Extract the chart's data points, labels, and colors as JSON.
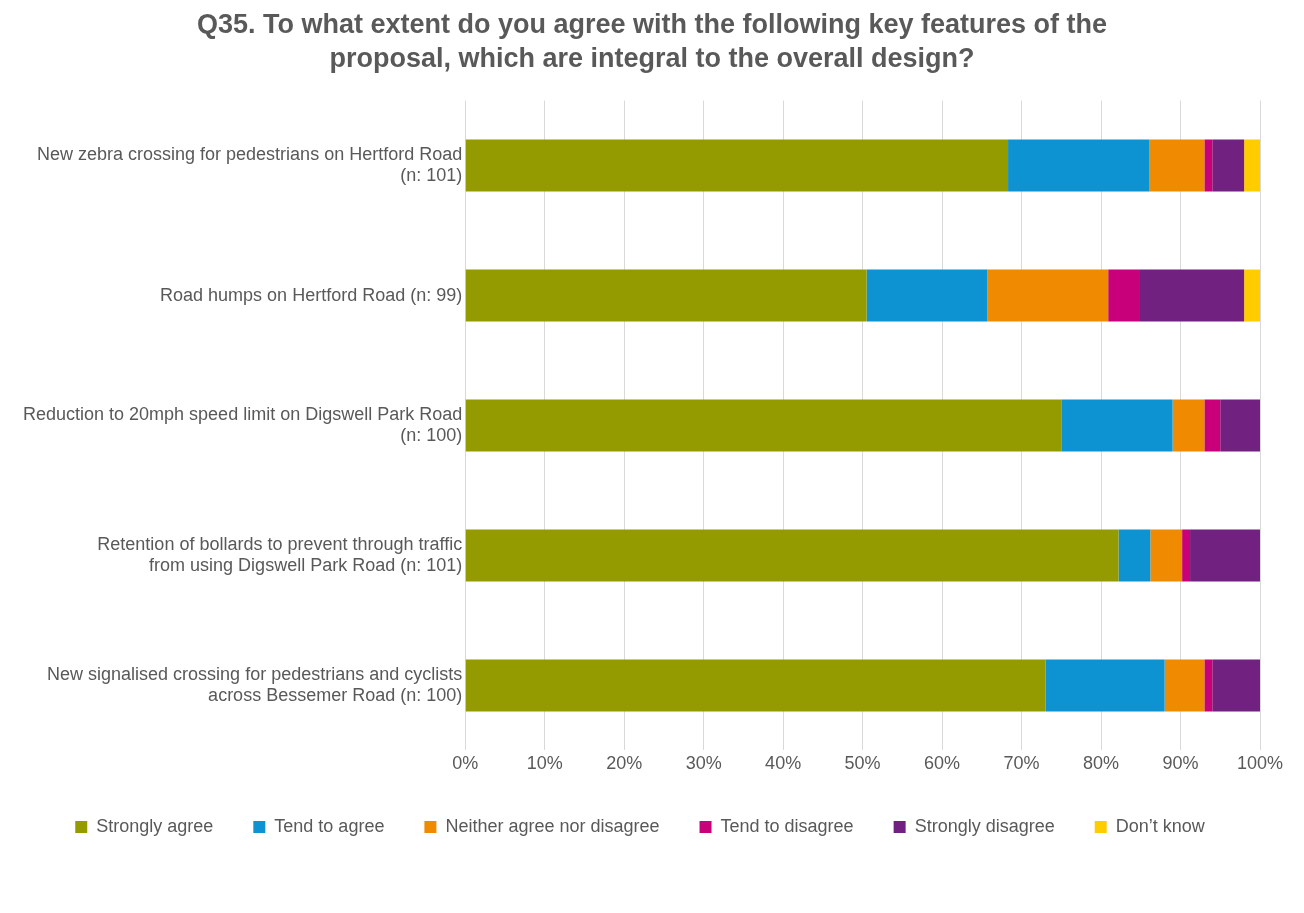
{
  "chart_data": {
    "type": "bar",
    "orientation": "horizontal",
    "stacked": true,
    "title": "Q35. To what extent do you agree with the following key features of the proposal, which are integral to the overall design?",
    "categories": [
      "New zebra crossing for pedestrians on Hertford Road (n: 101)",
      "Road humps on Hertford Road (n: 99)",
      "Reduction to 20mph speed limit on Digswell Park Road (n: 100)",
      "Retention of bollards to prevent through traffic from using Digswell Park Road (n: 101)",
      "New signalised crossing for pedestrians and cyclists across Bessemer Road (n: 100)"
    ],
    "series": [
      {
        "name": "Strongly agree",
        "color": "#949b00",
        "values": [
          68.3,
          50.5,
          75,
          82.2,
          73
        ]
      },
      {
        "name": "Tend to agree",
        "color": "#0d92d2",
        "values": [
          17.8,
          15.2,
          14,
          4,
          15
        ]
      },
      {
        "name": "Neither agree nor disagree",
        "color": "#f08a00",
        "values": [
          6.9,
          15.2,
          4,
          4,
          5
        ]
      },
      {
        "name": "Tend to disagree",
        "color": "#c8007a",
        "values": [
          1,
          4,
          2,
          1,
          1
        ]
      },
      {
        "name": "Strongly disagree",
        "color": "#71217f",
        "values": [
          4,
          13.1,
          5,
          8.9,
          6
        ]
      },
      {
        "name": "Don’t know",
        "color": "#ffcc00",
        "values": [
          2,
          2,
          0,
          0,
          0
        ]
      }
    ],
    "xlim": [
      0,
      100
    ],
    "xticks": [
      {
        "value": 0,
        "label": "0%"
      },
      {
        "value": 10,
        "label": "10%"
      },
      {
        "value": 20,
        "label": "20%"
      },
      {
        "value": 30,
        "label": "30%"
      },
      {
        "value": 40,
        "label": "40%"
      },
      {
        "value": 50,
        "label": "50%"
      },
      {
        "value": 60,
        "label": "60%"
      },
      {
        "value": 70,
        "label": "70%"
      },
      {
        "value": 80,
        "label": "80%"
      },
      {
        "value": 90,
        "label": "90%"
      },
      {
        "value": 100,
        "label": "100%"
      }
    ],
    "grid": "x",
    "legend": "bottom"
  }
}
